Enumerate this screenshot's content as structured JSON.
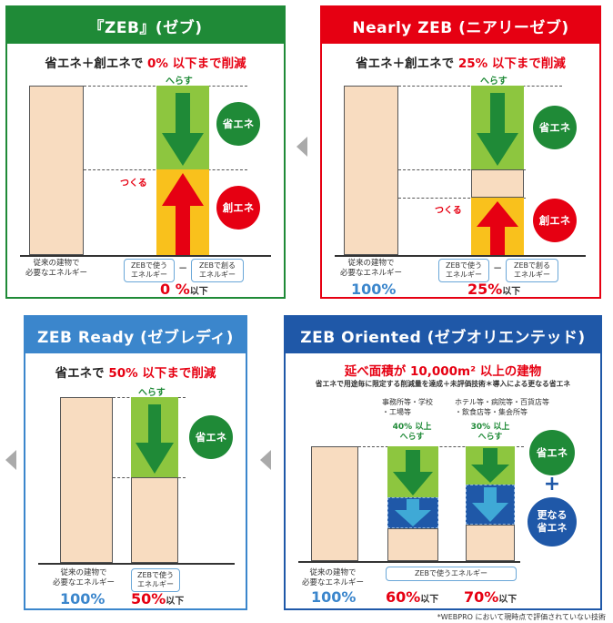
{
  "panels": {
    "zeb": {
      "title": "『ZEB』(ゼブ)",
      "subtitle_main": "省エネ＋創エネで",
      "subtitle_red": "0% 以下まで削減",
      "reduce": "へらす",
      "create": "つくる",
      "circle_save": "省エネ",
      "circle_create": "創エネ",
      "label_building": "従来の建物で\n必要なエネルギー",
      "box_use": "ZEBで使う\nエネルギー",
      "box_minus": "−",
      "box_create": "ZEBで創る\nエネルギー",
      "result_big": "0 %",
      "result_small": "以下",
      "colors": {
        "frame": "#1f8a37",
        "light_green": "#8dc63f",
        "arrow_green": "#1f8a37",
        "yellow": "#f9c11c",
        "arrow_red": "#e60012"
      }
    },
    "nearly": {
      "title": "Nearly ZEB (ニアリーゼブ)",
      "subtitle_main": "省エネ＋創エネで",
      "subtitle_red": "25% 以下まで削減",
      "reduce": "へらす",
      "create": "つくる",
      "circle_save": "省エネ",
      "circle_create": "創エネ",
      "label_building": "従来の建物で\n必要なエネルギー",
      "box_use": "ZEBで使う\nエネルギー",
      "box_minus": "−",
      "box_create": "ZEBで創る\nエネルギー",
      "base_pct": "100%",
      "result_big": "25%",
      "result_small": "以下",
      "colors": {
        "frame": "#e60012"
      }
    },
    "ready": {
      "title": "ZEB Ready (ゼブレディ)",
      "subtitle_main": "省エネで",
      "subtitle_red": "50% 以下まで削減",
      "reduce": "へらす",
      "circle_save": "省エネ",
      "label_building": "従来の建物で\n必要なエネルギー",
      "box_use": "ZEBで使う\nエネルギー",
      "base_pct": "100%",
      "result_big": "50%",
      "result_small": "以下",
      "colors": {
        "frame": "#3b86cc"
      }
    },
    "oriented": {
      "title": "ZEB Oriented (ゼブオリエンテッド)",
      "subtitle_red": "延べ面積が 10,000m² 以上の建物",
      "note": "省エネで用途毎に限定する削減量を達成＋未評価技術＊導入による更なる省エネ",
      "type1": "事務所等・学校\n・工場等",
      "type2": "ホテル等・病院等・百貨店等\n・飲食店等・集会所等",
      "reduce1": "40% 以上\nへらす",
      "reduce2": "30% 以上\nへらす",
      "circle_save": "省エネ",
      "plus": "+",
      "circle_more": "更なる\n省エネ",
      "label_building": "従来の建物で\n必要なエネルギー",
      "box_use": "ZEBで使うエネルギー",
      "base_pct": "100%",
      "result1_big": "60%",
      "result1_small": "以下",
      "result2_big": "70%",
      "result2_small": "以下",
      "colors": {
        "frame": "#1f58a8",
        "navy_fill": "#1f58a8",
        "cyan_arrow": "#3fa9d6"
      }
    }
  },
  "footnote": "*WEBPRO において現時点で評価されていない技術"
}
